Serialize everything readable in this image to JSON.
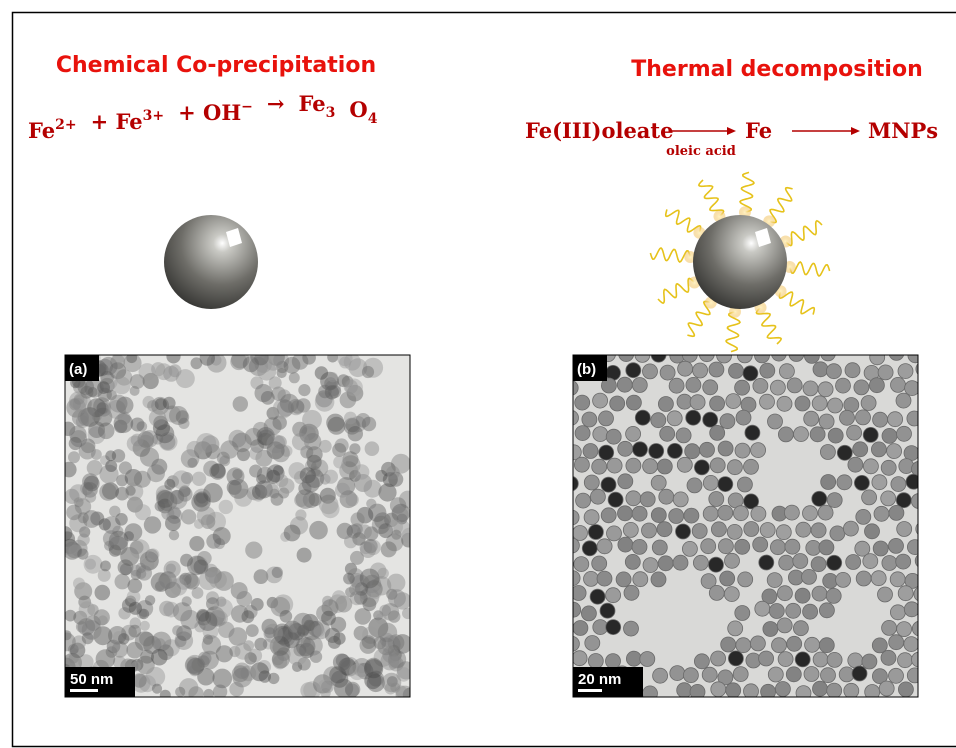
{
  "left": {
    "title": "Chemical Co-precipitation",
    "equation": [
      {
        "base": "Fe",
        "sup": "2+"
      },
      {
        "base": "+ Fe",
        "sup": "3+"
      },
      {
        "base": "+ OH",
        "sup": "−"
      },
      {
        "base": "→"
      },
      {
        "base": "Fe",
        "sub": "3"
      },
      {
        "base": "O",
        "sub": "4"
      }
    ],
    "panel": {
      "label": "(a)",
      "scale_bar": "50 nm"
    }
  },
  "right": {
    "title": "Thermal decomposition",
    "equation": {
      "reactant": "Fe(III)oleate",
      "condition": "oleic acid",
      "intermediate": "Fe",
      "product": "MNPs"
    },
    "panel": {
      "label": "(b)",
      "scale_bar": "20 nm"
    }
  }
}
